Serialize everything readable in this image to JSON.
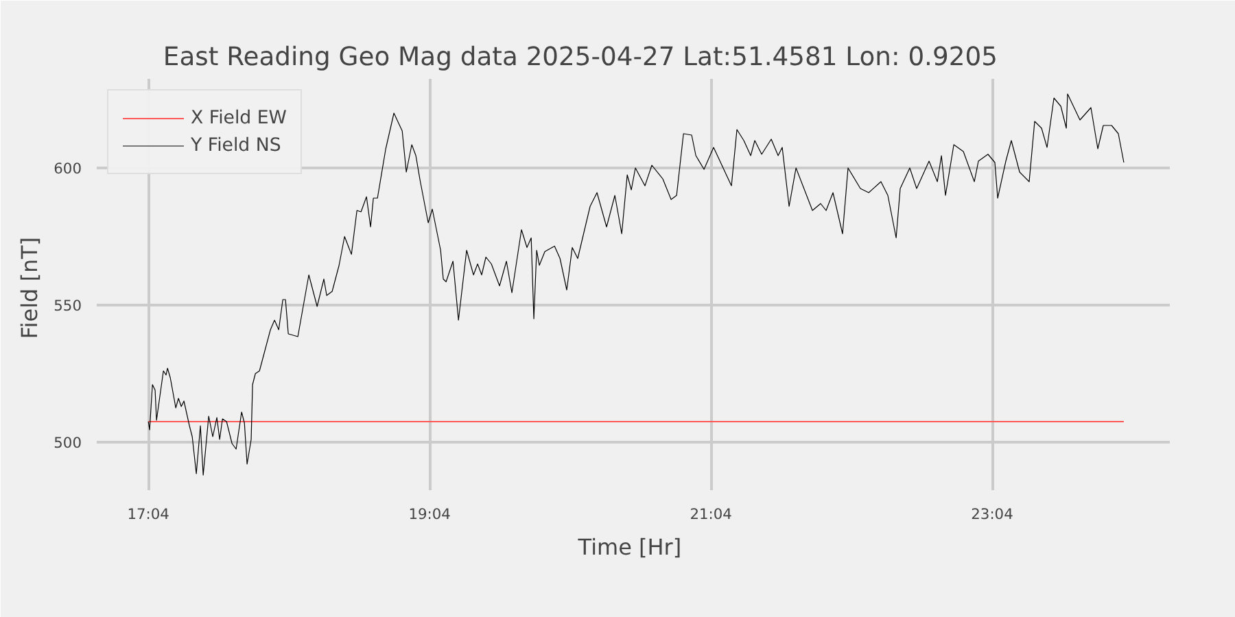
{
  "chart_data": {
    "type": "line",
    "title": "East Reading Geo Mag data        2025-04-27      Lat:51.4581  Lon: 0.9205",
    "xlabel": "Time  [Hr]",
    "ylabel": "Field  [nT]",
    "xlim": [
      16.7,
      24.33
    ],
    "ylim": [
      482.5,
      632.5
    ],
    "xticks": [
      {
        "value": 17.0667,
        "label": "17:04"
      },
      {
        "value": 19.0667,
        "label": "19:04"
      },
      {
        "value": 21.0667,
        "label": "21:04"
      },
      {
        "value": 23.0667,
        "label": "23:04"
      }
    ],
    "yticks": [
      500,
      550,
      600
    ],
    "grid": true,
    "legend": "top left",
    "marker": "none",
    "line_style": "solid",
    "series": [
      {
        "name": "X Field EW",
        "color": "#ff5555",
        "x": [
          17.067,
          24.003
        ],
        "values": [
          507.5,
          507.5
        ]
      },
      {
        "name": "Y Field NS",
        "color": "#000000",
        "x": [
          17.067,
          17.076,
          17.096,
          17.115,
          17.125,
          17.174,
          17.193,
          17.203,
          17.223,
          17.262,
          17.281,
          17.301,
          17.32,
          17.359,
          17.379,
          17.408,
          17.437,
          17.457,
          17.496,
          17.525,
          17.554,
          17.574,
          17.594,
          17.623,
          17.662,
          17.691,
          17.73,
          17.75,
          17.769,
          17.798,
          17.808,
          17.828,
          17.857,
          17.896,
          17.935,
          17.964,
          17.994,
          18.023,
          18.042,
          18.062,
          18.13,
          18.208,
          18.267,
          18.315,
          18.335,
          18.374,
          18.423,
          18.462,
          18.511,
          18.55,
          18.579,
          18.618,
          18.647,
          18.667,
          18.696,
          18.755,
          18.813,
          18.872,
          18.901,
          18.94,
          18.969,
          18.999,
          19.057,
          19.086,
          19.145,
          19.164,
          19.184,
          19.233,
          19.272,
          19.33,
          19.379,
          19.408,
          19.437,
          19.467,
          19.506,
          19.564,
          19.613,
          19.652,
          19.72,
          19.759,
          19.789,
          19.808,
          19.828,
          19.847,
          19.886,
          19.955,
          19.994,
          20.042,
          20.081,
          20.12,
          20.208,
          20.257,
          20.325,
          20.384,
          20.433,
          20.472,
          20.501,
          20.53,
          20.598,
          20.647,
          20.725,
          20.784,
          20.823,
          20.872,
          20.93,
          20.96,
          21.018,
          21.086,
          21.213,
          21.252,
          21.301,
          21.35,
          21.379,
          21.428,
          21.496,
          21.545,
          21.574,
          21.623,
          21.672,
          21.789,
          21.847,
          21.886,
          21.935,
          22.003,
          22.042,
          22.13,
          22.189,
          22.276,
          22.325,
          22.384,
          22.413,
          22.481,
          22.53,
          22.618,
          22.677,
          22.706,
          22.735,
          22.794,
          22.862,
          22.94,
          22.969,
          23.037,
          23.086,
          23.106,
          23.164,
          23.203,
          23.262,
          23.33,
          23.369,
          23.418,
          23.457,
          23.506,
          23.555,
          23.594,
          23.603,
          23.691,
          23.769,
          23.818,
          23.857,
          23.916,
          23.964,
          24.003
        ],
        "values": [
          507.5,
          504.5,
          521,
          519,
          508,
          526,
          524.5,
          527,
          523.5,
          512.5,
          516,
          513,
          515,
          506,
          502,
          488.5,
          506,
          488,
          509.5,
          502,
          509,
          501,
          508.5,
          507.5,
          499.5,
          497.5,
          511,
          507,
          492,
          501,
          521,
          525,
          526,
          533.5,
          541,
          544.5,
          541,
          552,
          552,
          539.5,
          538.5,
          561,
          549.5,
          559.5,
          553.5,
          555,
          564.5,
          575,
          568.5,
          584.5,
          584,
          589.5,
          578.5,
          589,
          589,
          607,
          620,
          613.5,
          598.5,
          608.5,
          604.5,
          595.5,
          580,
          585,
          570,
          559.5,
          558.5,
          566,
          544.5,
          570,
          561,
          565,
          561,
          567.5,
          565,
          557,
          566,
          554.5,
          577.5,
          571,
          574.5,
          545,
          570,
          564.5,
          569.5,
          571.5,
          567,
          555.5,
          571,
          567,
          586,
          591,
          578.5,
          590,
          576,
          597.5,
          592,
          600,
          593.5,
          601,
          596,
          588.5,
          590,
          612.5,
          612,
          604.5,
          599.5,
          607.5,
          593.5,
          614,
          610,
          604.5,
          610,
          605,
          610.5,
          604.5,
          607.5,
          586,
          600,
          584.5,
          587,
          584.5,
          591,
          576,
          600,
          592.5,
          591,
          595,
          590,
          574.5,
          592.5,
          600,
          592.5,
          602.5,
          595,
          604.5,
          590,
          608.5,
          606,
          595,
          602.5,
          605,
          602,
          589,
          602.5,
          610,
          598.5,
          595,
          617,
          614.5,
          607.5,
          625.5,
          622.5,
          614.5,
          627,
          617.5,
          622,
          607,
          615.5,
          615.5,
          612.5,
          602
        ]
      }
    ]
  }
}
